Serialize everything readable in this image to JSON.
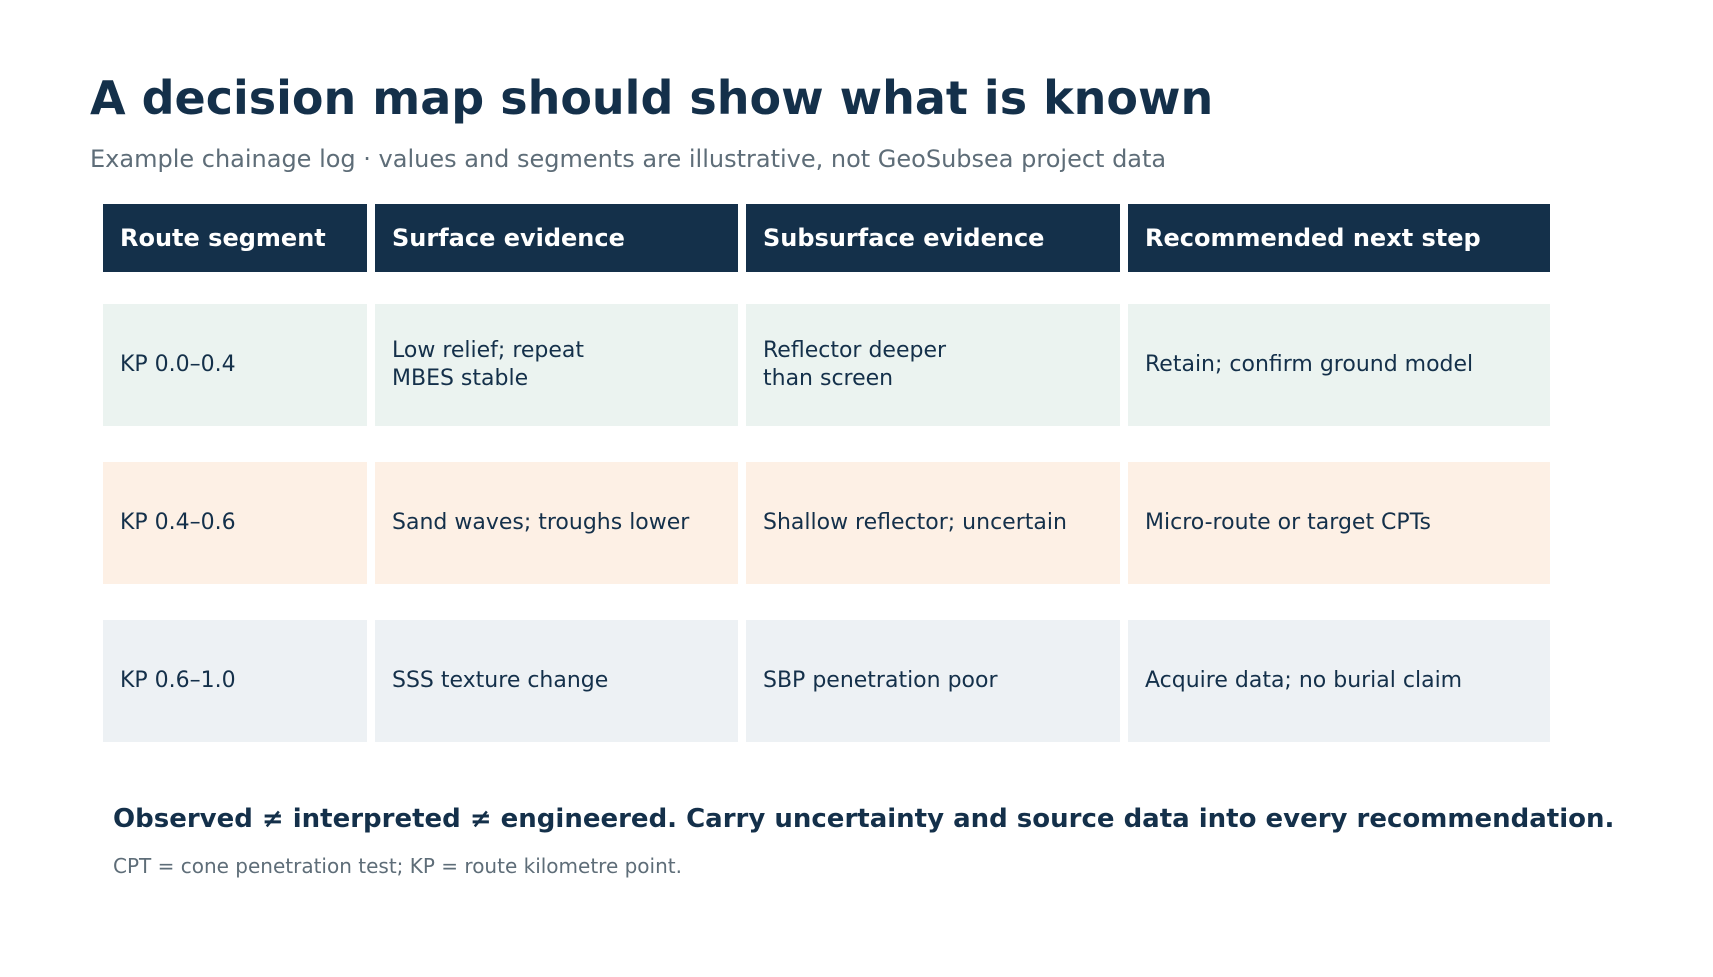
{
  "title": "A decision map should show what is known",
  "subtitle": "Example chainage log · values and segments are illustrative, not GeoSubsea project data",
  "table": {
    "headers": [
      "Route segment",
      "Surface evidence",
      "Subsurface evidence",
      "Recommended next step"
    ],
    "rows": [
      {
        "bg": "#ebf3f0",
        "cells": [
          "KP 0.0–0.4",
          "Low relief; repeat\nMBES stable",
          "Reflector deeper\nthan screen",
          "Retain; confirm ground model"
        ]
      },
      {
        "bg": "#fdf0e5",
        "cells": [
          "KP 0.4–0.6",
          "Sand waves; troughs lower",
          "Shallow reflector; uncertain",
          "Micro-route or target CPTs"
        ]
      },
      {
        "bg": "#edf1f4",
        "cells": [
          "KP 0.6–1.0",
          "SSS texture change",
          "SBP penetration poor",
          "Acquire data; no burial claim"
        ]
      }
    ]
  },
  "footer": {
    "main": "Observed ≠ interpreted ≠ engineered. Carry uncertainty and source data into every recommendation.",
    "note": "CPT = cone penetration test; KP = route kilometre point."
  },
  "colors": {
    "header_bg": "#14304a",
    "text_dark": "#14304a",
    "text_muted": "#5e6d78"
  }
}
